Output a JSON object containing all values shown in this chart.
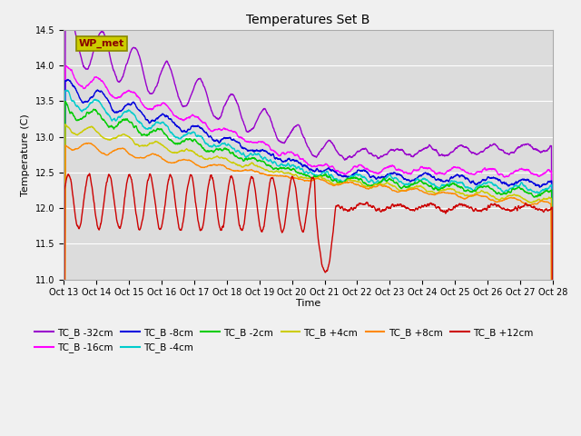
{
  "title": "Temperatures Set B",
  "xlabel": "Time",
  "ylabel": "Temperature (C)",
  "ylim": [
    11.0,
    14.5
  ],
  "xlim": [
    0,
    360
  ],
  "series": [
    {
      "label": "TC_B -32cm",
      "color": "#9900cc"
    },
    {
      "label": "TC_B -16cm",
      "color": "#ff00ff"
    },
    {
      "label": "TC_B -8cm",
      "color": "#0000dd"
    },
    {
      "label": "TC_B -4cm",
      "color": "#00cccc"
    },
    {
      "label": "TC_B -2cm",
      "color": "#00cc00"
    },
    {
      "label": "TC_B +4cm",
      "color": "#cccc00"
    },
    {
      "label": "TC_B +8cm",
      "color": "#ff8800"
    },
    {
      "label": "TC_B +12cm",
      "color": "#cc0000"
    }
  ],
  "wp_met_box_facecolor": "#cccc00",
  "wp_met_text_color": "#880000",
  "xtick_labels": [
    "Oct 13",
    "Oct 14",
    "Oct 15",
    "Oct 16",
    "Oct 17",
    "Oct 18",
    "Oct 19",
    "Oct 20",
    "Oct 21",
    "Oct 22",
    "Oct 23",
    "Oct 24",
    "Oct 25",
    "Oct 26",
    "Oct 27",
    "Oct 28"
  ],
  "seed": 42
}
